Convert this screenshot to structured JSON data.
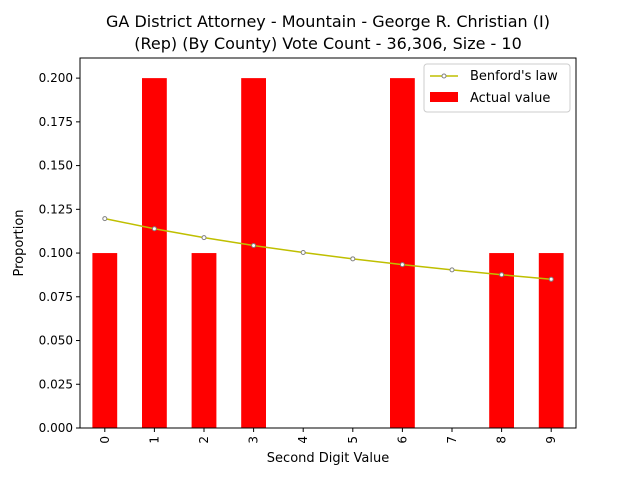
{
  "chart_data": {
    "type": "bar",
    "title_line1": "GA District Attorney - Mountain - George R. Christian (I)",
    "title_line2": "(Rep) (By County) Vote Count - 36,306, Size - 10",
    "xlabel": "Second Digit Value",
    "ylabel": "Proportion",
    "categories": [
      "0",
      "1",
      "2",
      "3",
      "4",
      "5",
      "6",
      "7",
      "8",
      "9"
    ],
    "ylim": [
      0,
      0.2115
    ],
    "yticks": [
      "0.000",
      "0.025",
      "0.050",
      "0.075",
      "0.100",
      "0.125",
      "0.150",
      "0.175",
      "0.200"
    ],
    "ytick_values": [
      0,
      0.025,
      0.05,
      0.075,
      0.1,
      0.125,
      0.15,
      0.175,
      0.2
    ],
    "series": [
      {
        "name": "Actual value",
        "kind": "bar",
        "color": "#ff0000",
        "values": [
          0.1,
          0.2,
          0.1,
          0.2,
          0.0,
          0.0,
          0.2,
          0.0,
          0.1,
          0.1
        ]
      },
      {
        "name": "Benford's law",
        "kind": "line",
        "color": "#bfbf00",
        "marker_color": "#808080",
        "values": [
          0.1197,
          0.1139,
          0.1088,
          0.1043,
          0.1003,
          0.0967,
          0.0934,
          0.0904,
          0.0876,
          0.085
        ]
      }
    ],
    "legend": {
      "position": "top-right",
      "line_label": "Benford's law",
      "bar_label": "Actual value"
    },
    "grid": false
  }
}
